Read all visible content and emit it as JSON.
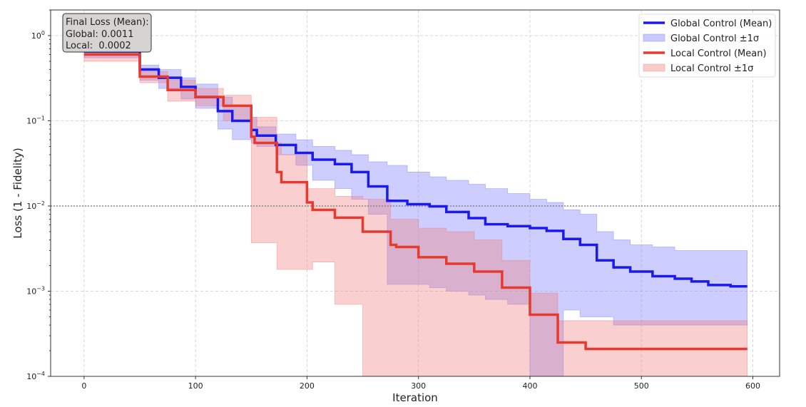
{
  "chart_data": {
    "type": "line",
    "title": "",
    "xlabel": "Iteration",
    "ylabel": "Loss (1 - Fidelity)",
    "xlim": [
      -30,
      624
    ],
    "ylim": [
      0.0001,
      2
    ],
    "yscale": "log",
    "grid": true,
    "x_ticks": [
      0,
      100,
      200,
      300,
      400,
      500,
      600
    ],
    "y_ticks": [
      {
        "base": "10",
        "exp": "0",
        "value": 1
      },
      {
        "base": "10",
        "exp": "−1",
        "value": 0.1
      },
      {
        "base": "10",
        "exp": "−2",
        "value": 0.01
      },
      {
        "base": "10",
        "exp": "−3",
        "value": 0.001
      },
      {
        "base": "10",
        "exp": "−4",
        "value": 0.0001
      }
    ],
    "reference_line": {
      "y": 0.01,
      "color": "#888888",
      "style": "dotted"
    },
    "legend_position": "top-right",
    "legend": [
      {
        "label": "Global Control (Mean)",
        "kind": "line",
        "color": "#1a1aee"
      },
      {
        "label": "Global Control ±1σ",
        "kind": "band",
        "color": "#7b7bff"
      },
      {
        "label": "Local Control (Mean)",
        "kind": "line",
        "color": "#e63a2e"
      },
      {
        "label": "Local Control ±1σ",
        "kind": "band",
        "color": "#f08080"
      }
    ],
    "annotation": {
      "lines": [
        "Final Loss (Mean):",
        "Global: 0.0011",
        "Local:  0.0002"
      ]
    },
    "series": [
      {
        "name": "Global Control",
        "color": "#1a1aee",
        "band_color": "#7b7bff",
        "end_x": 595,
        "steps_columns": [
          "x_start",
          "mean",
          "lower",
          "upper"
        ],
        "steps": [
          [
            0,
            0.65,
            0.55,
            0.8
          ],
          [
            50,
            0.4,
            0.3,
            0.45
          ],
          [
            67,
            0.32,
            0.24,
            0.4
          ],
          [
            87,
            0.25,
            0.18,
            0.32
          ],
          [
            100,
            0.19,
            0.14,
            0.27
          ],
          [
            120,
            0.13,
            0.08,
            0.19
          ],
          [
            133,
            0.1,
            0.06,
            0.15
          ],
          [
            150,
            0.078,
            0.055,
            0.11
          ],
          [
            155,
            0.067,
            0.05,
            0.085
          ],
          [
            172,
            0.052,
            0.04,
            0.07
          ],
          [
            190,
            0.042,
            0.03,
            0.06
          ],
          [
            205,
            0.035,
            0.02,
            0.05
          ],
          [
            225,
            0.031,
            0.016,
            0.045
          ],
          [
            240,
            0.025,
            0.012,
            0.04
          ],
          [
            255,
            0.017,
            0.008,
            0.033
          ],
          [
            272,
            0.0115,
            0.0012,
            0.03
          ],
          [
            290,
            0.0105,
            0.0012,
            0.025
          ],
          [
            310,
            0.0099,
            0.0011,
            0.022
          ],
          [
            325,
            0.0085,
            0.001,
            0.02
          ],
          [
            345,
            0.0072,
            0.0009,
            0.018
          ],
          [
            360,
            0.0061,
            0.0008,
            0.016
          ],
          [
            380,
            0.0058,
            0.0007,
            0.014
          ],
          [
            400,
            0.0055,
            0.0001,
            0.012
          ],
          [
            415,
            0.0051,
            0.0001,
            0.011
          ],
          [
            430,
            0.0041,
            0.0006,
            0.009
          ],
          [
            445,
            0.0035,
            0.0005,
            0.008
          ],
          [
            460,
            0.0023,
            0.0005,
            0.005
          ],
          [
            475,
            0.0019,
            0.0004,
            0.004
          ],
          [
            490,
            0.0017,
            0.0004,
            0.0035
          ],
          [
            510,
            0.0015,
            0.0004,
            0.0033
          ],
          [
            530,
            0.0014,
            0.0004,
            0.003
          ],
          [
            545,
            0.0013,
            0.0004,
            0.003
          ],
          [
            560,
            0.00118,
            0.0004,
            0.003
          ],
          [
            580,
            0.00114,
            0.0004,
            0.003
          ]
        ]
      },
      {
        "name": "Local Control",
        "color": "#e63a2e",
        "band_color": "#f08080",
        "end_x": 595,
        "steps_columns": [
          "x_start",
          "mean",
          "lower",
          "upper"
        ],
        "steps": [
          [
            0,
            0.6,
            0.5,
            0.75
          ],
          [
            50,
            0.33,
            0.28,
            0.38
          ],
          [
            75,
            0.23,
            0.17,
            0.3
          ],
          [
            100,
            0.19,
            0.15,
            0.24
          ],
          [
            125,
            0.15,
            0.1,
            0.2
          ],
          [
            150,
            0.065,
            0.0037,
            0.11
          ],
          [
            153,
            0.055,
            0.0037,
            0.11
          ],
          [
            173,
            0.025,
            0.0018,
            0.055
          ],
          [
            177,
            0.019,
            0.0018,
            0.04
          ],
          [
            200,
            0.011,
            0.0018,
            0.016
          ],
          [
            205,
            0.009,
            0.0022,
            0.016
          ],
          [
            225,
            0.0073,
            0.0007,
            0.013
          ],
          [
            250,
            0.005,
            3e-05,
            0.012
          ],
          [
            275,
            0.0035,
            1e-05,
            0.007
          ],
          [
            280,
            0.0033,
            1e-05,
            0.007
          ],
          [
            300,
            0.0025,
            1e-05,
            0.0055
          ],
          [
            325,
            0.0021,
            1e-05,
            0.005
          ],
          [
            350,
            0.0017,
            1e-05,
            0.004
          ],
          [
            375,
            0.0011,
            1e-05,
            0.0023
          ],
          [
            400,
            0.00053,
            1e-05,
            0.00095
          ],
          [
            425,
            0.00025,
            1e-05,
            0.00045
          ],
          [
            450,
            0.00021,
            1e-05,
            0.00045
          ]
        ]
      }
    ]
  }
}
